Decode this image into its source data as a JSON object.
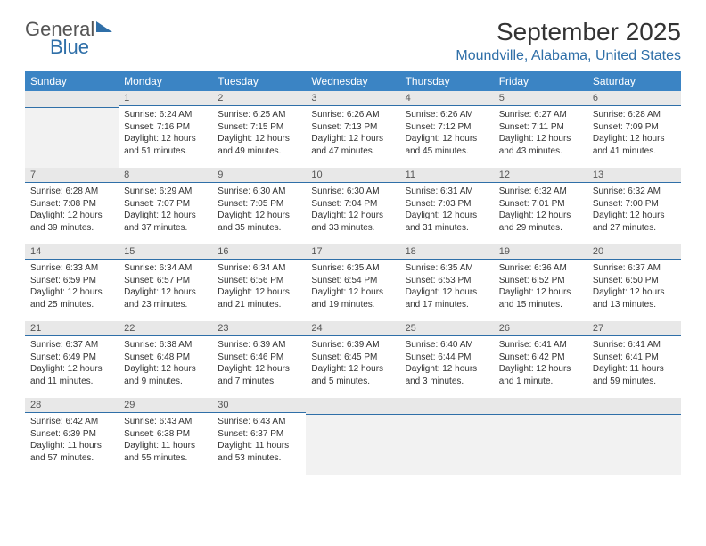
{
  "logo": {
    "part1": "General",
    "part2": "Blue"
  },
  "title": "September 2025",
  "location": "Moundville, Alabama, United States",
  "colors": {
    "header_bg": "#3b84c4",
    "accent": "#2f6fa8",
    "daynum_bg": "#e8e8e8",
    "text": "#333333"
  },
  "day_headers": [
    "Sunday",
    "Monday",
    "Tuesday",
    "Wednesday",
    "Thursday",
    "Friday",
    "Saturday"
  ],
  "weeks": [
    [
      null,
      {
        "n": "1",
        "sr": "Sunrise: 6:24 AM",
        "ss": "Sunset: 7:16 PM",
        "d1": "Daylight: 12 hours",
        "d2": "and 51 minutes."
      },
      {
        "n": "2",
        "sr": "Sunrise: 6:25 AM",
        "ss": "Sunset: 7:15 PM",
        "d1": "Daylight: 12 hours",
        "d2": "and 49 minutes."
      },
      {
        "n": "3",
        "sr": "Sunrise: 6:26 AM",
        "ss": "Sunset: 7:13 PM",
        "d1": "Daylight: 12 hours",
        "d2": "and 47 minutes."
      },
      {
        "n": "4",
        "sr": "Sunrise: 6:26 AM",
        "ss": "Sunset: 7:12 PM",
        "d1": "Daylight: 12 hours",
        "d2": "and 45 minutes."
      },
      {
        "n": "5",
        "sr": "Sunrise: 6:27 AM",
        "ss": "Sunset: 7:11 PM",
        "d1": "Daylight: 12 hours",
        "d2": "and 43 minutes."
      },
      {
        "n": "6",
        "sr": "Sunrise: 6:28 AM",
        "ss": "Sunset: 7:09 PM",
        "d1": "Daylight: 12 hours",
        "d2": "and 41 minutes."
      }
    ],
    [
      {
        "n": "7",
        "sr": "Sunrise: 6:28 AM",
        "ss": "Sunset: 7:08 PM",
        "d1": "Daylight: 12 hours",
        "d2": "and 39 minutes."
      },
      {
        "n": "8",
        "sr": "Sunrise: 6:29 AM",
        "ss": "Sunset: 7:07 PM",
        "d1": "Daylight: 12 hours",
        "d2": "and 37 minutes."
      },
      {
        "n": "9",
        "sr": "Sunrise: 6:30 AM",
        "ss": "Sunset: 7:05 PM",
        "d1": "Daylight: 12 hours",
        "d2": "and 35 minutes."
      },
      {
        "n": "10",
        "sr": "Sunrise: 6:30 AM",
        "ss": "Sunset: 7:04 PM",
        "d1": "Daylight: 12 hours",
        "d2": "and 33 minutes."
      },
      {
        "n": "11",
        "sr": "Sunrise: 6:31 AM",
        "ss": "Sunset: 7:03 PM",
        "d1": "Daylight: 12 hours",
        "d2": "and 31 minutes."
      },
      {
        "n": "12",
        "sr": "Sunrise: 6:32 AM",
        "ss": "Sunset: 7:01 PM",
        "d1": "Daylight: 12 hours",
        "d2": "and 29 minutes."
      },
      {
        "n": "13",
        "sr": "Sunrise: 6:32 AM",
        "ss": "Sunset: 7:00 PM",
        "d1": "Daylight: 12 hours",
        "d2": "and 27 minutes."
      }
    ],
    [
      {
        "n": "14",
        "sr": "Sunrise: 6:33 AM",
        "ss": "Sunset: 6:59 PM",
        "d1": "Daylight: 12 hours",
        "d2": "and 25 minutes."
      },
      {
        "n": "15",
        "sr": "Sunrise: 6:34 AM",
        "ss": "Sunset: 6:57 PM",
        "d1": "Daylight: 12 hours",
        "d2": "and 23 minutes."
      },
      {
        "n": "16",
        "sr": "Sunrise: 6:34 AM",
        "ss": "Sunset: 6:56 PM",
        "d1": "Daylight: 12 hours",
        "d2": "and 21 minutes."
      },
      {
        "n": "17",
        "sr": "Sunrise: 6:35 AM",
        "ss": "Sunset: 6:54 PM",
        "d1": "Daylight: 12 hours",
        "d2": "and 19 minutes."
      },
      {
        "n": "18",
        "sr": "Sunrise: 6:35 AM",
        "ss": "Sunset: 6:53 PM",
        "d1": "Daylight: 12 hours",
        "d2": "and 17 minutes."
      },
      {
        "n": "19",
        "sr": "Sunrise: 6:36 AM",
        "ss": "Sunset: 6:52 PM",
        "d1": "Daylight: 12 hours",
        "d2": "and 15 minutes."
      },
      {
        "n": "20",
        "sr": "Sunrise: 6:37 AM",
        "ss": "Sunset: 6:50 PM",
        "d1": "Daylight: 12 hours",
        "d2": "and 13 minutes."
      }
    ],
    [
      {
        "n": "21",
        "sr": "Sunrise: 6:37 AM",
        "ss": "Sunset: 6:49 PM",
        "d1": "Daylight: 12 hours",
        "d2": "and 11 minutes."
      },
      {
        "n": "22",
        "sr": "Sunrise: 6:38 AM",
        "ss": "Sunset: 6:48 PM",
        "d1": "Daylight: 12 hours",
        "d2": "and 9 minutes."
      },
      {
        "n": "23",
        "sr": "Sunrise: 6:39 AM",
        "ss": "Sunset: 6:46 PM",
        "d1": "Daylight: 12 hours",
        "d2": "and 7 minutes."
      },
      {
        "n": "24",
        "sr": "Sunrise: 6:39 AM",
        "ss": "Sunset: 6:45 PM",
        "d1": "Daylight: 12 hours",
        "d2": "and 5 minutes."
      },
      {
        "n": "25",
        "sr": "Sunrise: 6:40 AM",
        "ss": "Sunset: 6:44 PM",
        "d1": "Daylight: 12 hours",
        "d2": "and 3 minutes."
      },
      {
        "n": "26",
        "sr": "Sunrise: 6:41 AM",
        "ss": "Sunset: 6:42 PM",
        "d1": "Daylight: 12 hours",
        "d2": "and 1 minute."
      },
      {
        "n": "27",
        "sr": "Sunrise: 6:41 AM",
        "ss": "Sunset: 6:41 PM",
        "d1": "Daylight: 11 hours",
        "d2": "and 59 minutes."
      }
    ],
    [
      {
        "n": "28",
        "sr": "Sunrise: 6:42 AM",
        "ss": "Sunset: 6:39 PM",
        "d1": "Daylight: 11 hours",
        "d2": "and 57 minutes."
      },
      {
        "n": "29",
        "sr": "Sunrise: 6:43 AM",
        "ss": "Sunset: 6:38 PM",
        "d1": "Daylight: 11 hours",
        "d2": "and 55 minutes."
      },
      {
        "n": "30",
        "sr": "Sunrise: 6:43 AM",
        "ss": "Sunset: 6:37 PM",
        "d1": "Daylight: 11 hours",
        "d2": "and 53 minutes."
      },
      null,
      null,
      null,
      null
    ]
  ]
}
